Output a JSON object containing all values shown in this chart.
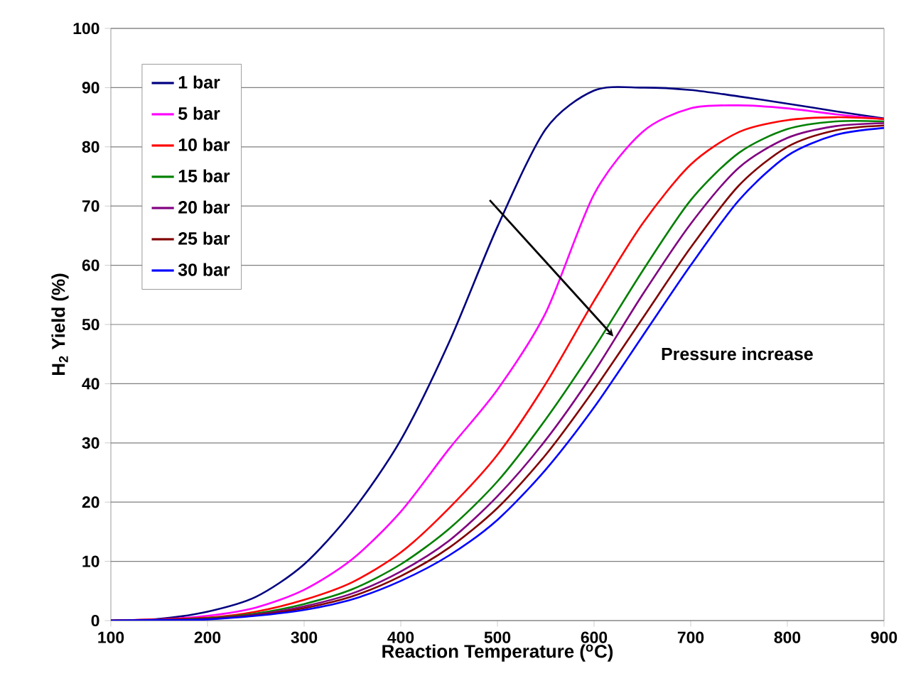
{
  "chart_data": {
    "type": "line",
    "xlabel": "Reaction Temperature ($^{o}$C)",
    "ylabel": "H$_{2}$ Yield (%)",
    "x": [
      100,
      150,
      200,
      250,
      300,
      350,
      400,
      450,
      500,
      550,
      600,
      650,
      700,
      750,
      800,
      850,
      900
    ],
    "series": [
      {
        "name": "1 bar",
        "color": "#000080",
        "values": [
          0,
          0.3,
          1.5,
          4,
          9.5,
          18.5,
          30.5,
          47,
          66.5,
          83,
          89.5,
          90,
          89.6,
          88.5,
          87.3,
          86,
          84.8
        ]
      },
      {
        "name": "5 bar",
        "color": "#ff00ff",
        "values": [
          0,
          0.2,
          0.8,
          2.2,
          5.2,
          10.4,
          18.4,
          29,
          39,
          52,
          72,
          82.5,
          86.5,
          87,
          86.5,
          85.5,
          84.7
        ]
      },
      {
        "name": "10 bar",
        "color": "#ff0000",
        "values": [
          0,
          null,
          0.5,
          1.5,
          3.5,
          6.5,
          11.5,
          19,
          28,
          40,
          54,
          67,
          77,
          82.5,
          84.5,
          85,
          84.7
        ]
      },
      {
        "name": "15 bar",
        "color": "#008000",
        "values": [
          0,
          0.1,
          0.4,
          1.2,
          2.8,
          5.3,
          9.5,
          15.5,
          23.5,
          34,
          46,
          59,
          71,
          79,
          83,
          84.3,
          84.3
        ]
      },
      {
        "name": "20 bar",
        "color": "#800080",
        "values": [
          0,
          0.1,
          0.3,
          1,
          2.4,
          4.6,
          8.3,
          13.5,
          21,
          30.5,
          42,
          55,
          67,
          76.5,
          81.5,
          83.5,
          84
        ]
      },
      {
        "name": "25 bar",
        "color": "#800000",
        "values": [
          0,
          0.1,
          0.3,
          0.9,
          2.1,
          4.1,
          7.5,
          12.3,
          19,
          28,
          39,
          51,
          63,
          73.5,
          80,
          82.8,
          83.6
        ]
      },
      {
        "name": "30 bar",
        "color": "#0000ff",
        "values": [
          0,
          0.1,
          0.2,
          0.8,
          1.8,
          3.6,
          6.7,
          11,
          17,
          25.5,
          36,
          48,
          60,
          71,
          78.5,
          82,
          83.2
        ]
      }
    ],
    "xlim": [
      100,
      900
    ],
    "ylim": [
      0,
      100
    ],
    "xticks": [
      100,
      200,
      300,
      400,
      500,
      600,
      700,
      800,
      900
    ],
    "yticks": [
      0,
      10,
      20,
      30,
      40,
      50,
      60,
      70,
      80,
      90,
      100
    ],
    "grid": "y",
    "legend": "top left",
    "marker": "none",
    "line_style": "solid",
    "annotations": [
      "Pressure increase"
    ]
  }
}
